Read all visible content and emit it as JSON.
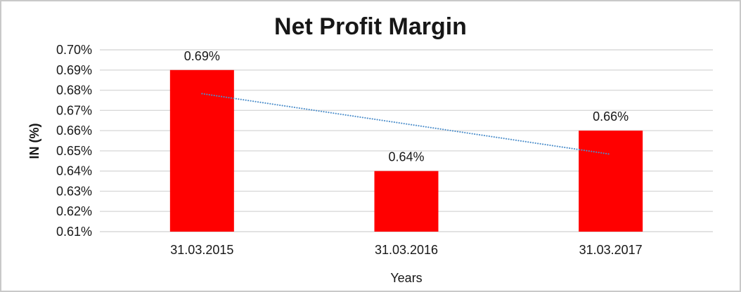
{
  "window": {
    "background": "#ffffff",
    "border_color": "#c9c9c9"
  },
  "chart_data": {
    "type": "bar",
    "title": "Net Profit Margin",
    "categories": [
      "31.03.2015",
      "31.03.2016",
      "31.03.2017"
    ],
    "values": [
      0.69,
      0.64,
      0.66
    ],
    "data_labels": [
      "0.69%",
      "0.64%",
      "0.66%"
    ],
    "xlabel": "Years",
    "ylabel": "IN (%)",
    "ylim": [
      0.61,
      0.7
    ],
    "ytick_step": 0.01,
    "ytick_labels": [
      "0.70%",
      "0.69%",
      "0.68%",
      "0.67%",
      "0.66%",
      "0.65%",
      "0.64%",
      "0.63%",
      "0.62%",
      "0.61%"
    ],
    "grid": true,
    "legend": "none",
    "bar_color": "#ff0000",
    "gridline_color": "#d9d9d9",
    "text_color": "#171717",
    "trendline": {
      "type": "linear",
      "start_value": 0.6783,
      "end_value": 0.6483,
      "color": "#4e8fcb",
      "style": "dotted"
    }
  }
}
